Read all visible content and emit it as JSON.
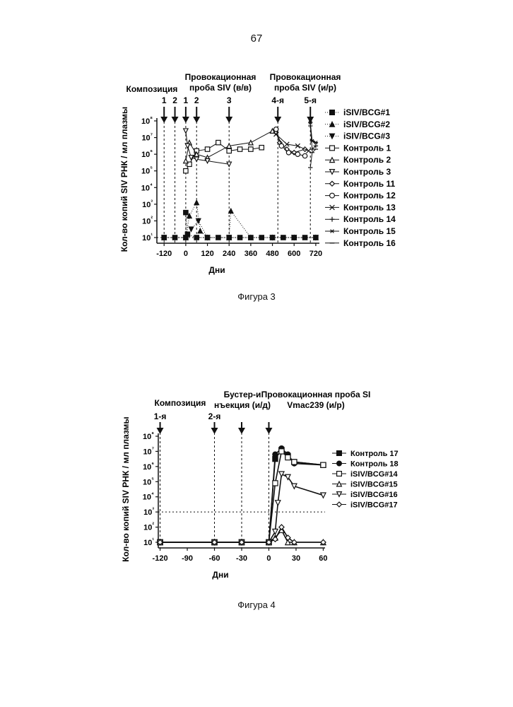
{
  "page": {
    "number": "67"
  },
  "chart_data": [
    {
      "type": "line",
      "caption": "Фигура 3",
      "xlabel": "Дни",
      "ylabel": "Кол-во копий SIV РНК / мл плазмы",
      "x_ticks": [
        "-120",
        "0",
        "120",
        "240",
        "360",
        "480",
        "600",
        "720"
      ],
      "x_tick_values": [
        -120,
        0,
        120,
        240,
        360,
        480,
        600,
        720
      ],
      "y_ticks": [
        "10¹",
        "10²",
        "10³",
        "10⁴",
        "10⁵",
        "10⁶",
        "10⁷",
        "10⁸"
      ],
      "y_exponents": [
        1,
        2,
        3,
        4,
        5,
        6,
        7,
        8
      ],
      "xlim": [
        -160,
        740
      ],
      "ylim_log10": [
        1,
        8
      ],
      "y_scale": "log",
      "detection_limit": 10,
      "header_labels": {
        "composition": "Композиция",
        "challenge_iv": "Провокационная проба SIV (в/в)",
        "challenge_ir": "Провокационная проба SIV (и/р)"
      },
      "events": [
        {
          "x": -120,
          "label": "1"
        },
        {
          "x": -60,
          "label": "2"
        },
        {
          "x": 0,
          "label": "1"
        },
        {
          "x": 60,
          "label": "2"
        },
        {
          "x": 240,
          "label": "3"
        },
        {
          "x": 510,
          "label": "4-я"
        },
        {
          "x": 690,
          "label": "5-я"
        }
      ],
      "legend_position": "right",
      "series": [
        {
          "name": "iSIV/BCG#1",
          "marker": "square-filled",
          "style": "dotted",
          "points": [
            [
              -120,
              1
            ],
            [
              -60,
              1
            ],
            [
              0,
              1
            ],
            [
              0,
              2.5
            ],
            [
              10,
              1.2
            ],
            [
              60,
              1
            ],
            [
              120,
              1
            ],
            [
              180,
              1
            ],
            [
              240,
              1
            ],
            [
              300,
              1
            ],
            [
              360,
              1
            ],
            [
              420,
              1
            ],
            [
              480,
              1
            ],
            [
              540,
              1
            ],
            [
              600,
              1
            ],
            [
              660,
              1
            ],
            [
              720,
              1
            ]
          ]
        },
        {
          "name": "iSIV/BCG#2",
          "marker": "triangle-filled",
          "style": "dotted",
          "points": [
            [
              -120,
              1
            ],
            [
              0,
              1
            ],
            [
              20,
              2.3
            ],
            [
              60,
              3.1
            ],
            [
              80,
              1.4
            ],
            [
              120,
              1
            ],
            [
              240,
              1
            ],
            [
              250,
              2.6
            ],
            [
              360,
              1
            ],
            [
              480,
              1
            ],
            [
              600,
              1
            ],
            [
              720,
              1
            ]
          ]
        },
        {
          "name": "iSIV/BCG#3",
          "marker": "triangle-down-filled",
          "style": "dotted",
          "points": [
            [
              -120,
              1
            ],
            [
              0,
              1
            ],
            [
              30,
              1.5
            ],
            [
              70,
              2
            ],
            [
              120,
              1
            ],
            [
              240,
              1
            ],
            [
              480,
              1
            ],
            [
              600,
              1
            ],
            [
              720,
              1
            ]
          ]
        },
        {
          "name": "Контроль 1",
          "marker": "square-open",
          "style": "solid",
          "points": [
            [
              0,
              5
            ],
            [
              20,
              5.4
            ],
            [
              60,
              6.2
            ],
            [
              120,
              6.3
            ],
            [
              180,
              6.7
            ],
            [
              240,
              6.2
            ],
            [
              300,
              6.3
            ],
            [
              360,
              6.3
            ],
            [
              420,
              6.4
            ]
          ]
        },
        {
          "name": "Контроль 2",
          "marker": "triangle-open",
          "style": "solid",
          "points": [
            [
              0,
              5.6
            ],
            [
              20,
              6.7
            ],
            [
              60,
              6
            ],
            [
              120,
              5.8
            ],
            [
              240,
              6.5
            ],
            [
              360,
              6.7
            ],
            [
              480,
              7.4
            ]
          ]
        },
        {
          "name": "Контроль 3",
          "marker": "triangle-down-open",
          "style": "solid",
          "points": [
            [
              0,
              7.4
            ],
            [
              10,
              6.5
            ],
            [
              30,
              5.8
            ],
            [
              60,
              5.7
            ],
            [
              120,
              5.6
            ],
            [
              240,
              5.4
            ]
          ]
        },
        {
          "name": "Контроль 11",
          "marker": "diamond-open",
          "style": "solid",
          "points": [
            [
              500,
              7.3
            ],
            [
              520,
              6.7
            ],
            [
              560,
              6.3
            ],
            [
              600,
              6.1
            ],
            [
              660,
              6.3
            ]
          ]
        },
        {
          "name": "Контроль 12",
          "marker": "circle-open",
          "style": "solid",
          "points": [
            [
              500,
              7.5
            ],
            [
              530,
              6.5
            ],
            [
              570,
              6.1
            ],
            [
              620,
              6
            ],
            [
              660,
              5.9
            ]
          ]
        },
        {
          "name": "Контроль 13",
          "marker": "x",
          "style": "solid",
          "points": [
            [
              500,
              7.2
            ],
            [
              560,
              6.6
            ],
            [
              620,
              6.5
            ],
            [
              680,
              6.2
            ]
          ]
        },
        {
          "name": "Контроль 14",
          "marker": "plus",
          "style": "solid",
          "points": [
            [
              690,
              7.7
            ],
            [
              700,
              6.3
            ],
            [
              720,
              6.5
            ]
          ]
        },
        {
          "name": "Контроль 15",
          "marker": "star",
          "style": "solid",
          "points": [
            [
              690,
              7.9
            ],
            [
              700,
              6.8
            ],
            [
              720,
              6.7
            ]
          ]
        },
        {
          "name": "Контроль 16",
          "marker": "dash",
          "style": "solid",
          "points": [
            [
              690,
              5.2
            ],
            [
              700,
              6.1
            ],
            [
              720,
              6.3
            ]
          ]
        }
      ]
    },
    {
      "type": "line",
      "caption": "Фигура 4",
      "xlabel": "Дни",
      "ylabel": "Кол-во копий SIV РНК / мл плазмы",
      "x_ticks": [
        "-120",
        "-90",
        "-60",
        "-30",
        "0",
        "30",
        "60"
      ],
      "x_tick_values": [
        -120,
        -90,
        -60,
        -30,
        0,
        30,
        60
      ],
      "y_ticks": [
        "10¹",
        "10²",
        "10³",
        "10⁴",
        "10⁵",
        "10⁶",
        "10⁷",
        "10⁸"
      ],
      "y_exponents": [
        1,
        2,
        3,
        4,
        5,
        6,
        7,
        8
      ],
      "xlim": [
        -122,
        62
      ],
      "ylim_log10": [
        1,
        8
      ],
      "y_scale": "log",
      "threshold_line": 1000,
      "header_labels": {
        "composition": "Композиция",
        "booster": "Бустер-инъекция (и/д)",
        "challenge": "Провокационная проба SIVmac239 (и/р)"
      },
      "events": [
        {
          "x": -120,
          "label": "1-я"
        },
        {
          "x": -60,
          "label": "2-я"
        },
        {
          "x": -30,
          "label": ""
        },
        {
          "x": 0,
          "label": ""
        }
      ],
      "legend_position": "top-right",
      "series": [
        {
          "name": "Контроль 17",
          "marker": "square-filled",
          "points": [
            [
              -120,
              1
            ],
            [
              -60,
              1
            ],
            [
              -30,
              1
            ],
            [
              0,
              1
            ],
            [
              7,
              6.5
            ],
            [
              14,
              7.1
            ],
            [
              21,
              6.7
            ],
            [
              28,
              6.3
            ],
            [
              60,
              6.1
            ]
          ]
        },
        {
          "name": "Контроль 18",
          "marker": "circle-filled",
          "points": [
            [
              -120,
              1
            ],
            [
              -60,
              1
            ],
            [
              -30,
              1
            ],
            [
              0,
              1
            ],
            [
              7,
              6.8
            ],
            [
              14,
              7.2
            ],
            [
              21,
              6.8
            ],
            [
              28,
              6.2
            ],
            [
              60,
              6.1
            ]
          ]
        },
        {
          "name": "iSIV/BCG#14",
          "marker": "square-open",
          "points": [
            [
              -120,
              1
            ],
            [
              -60,
              1
            ],
            [
              -30,
              1
            ],
            [
              0,
              1
            ],
            [
              7,
              4.9
            ],
            [
              14,
              7
            ],
            [
              21,
              6.6
            ],
            [
              28,
              6.3
            ],
            [
              60,
              6.1
            ]
          ]
        },
        {
          "name": "iSIV/BCG#15",
          "marker": "triangle-open",
          "points": [
            [
              -120,
              1
            ],
            [
              -60,
              1
            ],
            [
              -30,
              1
            ],
            [
              0,
              1
            ],
            [
              7,
              1.3
            ],
            [
              14,
              1.8
            ],
            [
              21,
              1
            ],
            [
              28,
              1
            ],
            [
              60,
              1
            ]
          ]
        },
        {
          "name": "iSIV/BCG#16",
          "marker": "triangle-down-open",
          "points": [
            [
              -120,
              1
            ],
            [
              -60,
              1
            ],
            [
              -30,
              1
            ],
            [
              0,
              1
            ],
            [
              7,
              1.7
            ],
            [
              10,
              3.6
            ],
            [
              14,
              5.5
            ],
            [
              21,
              5.3
            ],
            [
              28,
              4.7
            ],
            [
              60,
              4.1
            ]
          ]
        },
        {
          "name": "iSIV/BCG#17",
          "marker": "diamond-open",
          "points": [
            [
              -120,
              1
            ],
            [
              -60,
              1
            ],
            [
              -30,
              1
            ],
            [
              0,
              1
            ],
            [
              7,
              1.2
            ],
            [
              14,
              2
            ],
            [
              21,
              1.3
            ],
            [
              28,
              1
            ],
            [
              60,
              1
            ]
          ]
        }
      ]
    }
  ]
}
